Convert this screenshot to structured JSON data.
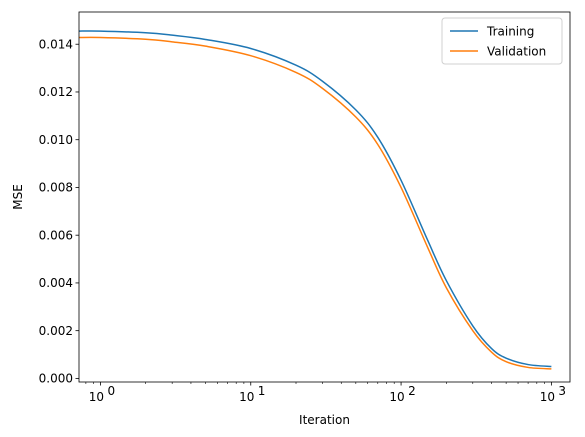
{
  "chart_data": {
    "type": "line",
    "title": "",
    "xlabel": "Iteration",
    "ylabel": "MSE",
    "xscale": "log",
    "xlim": [
      0.72,
      1330
    ],
    "ylim": [
      -0.00015,
      0.01535
    ],
    "x_ticks": [
      {
        "value": 1,
        "label": "10",
        "exp": "0"
      },
      {
        "value": 10,
        "label": "10",
        "exp": "1"
      },
      {
        "value": 100,
        "label": "10",
        "exp": "2"
      },
      {
        "value": 1000,
        "label": "10",
        "exp": "3"
      }
    ],
    "y_ticks": [
      {
        "value": 0.0,
        "label": "0.000"
      },
      {
        "value": 0.002,
        "label": "0.002"
      },
      {
        "value": 0.004,
        "label": "0.004"
      },
      {
        "value": 0.006,
        "label": "0.006"
      },
      {
        "value": 0.008,
        "label": "0.008"
      },
      {
        "value": 0.01,
        "label": "0.010"
      },
      {
        "value": 0.012,
        "label": "0.012"
      },
      {
        "value": 0.014,
        "label": "0.014"
      }
    ],
    "grid": false,
    "legend_position": "top-right",
    "x": [
      0.72,
      1,
      2,
      3,
      5,
      10,
      20,
      30,
      50,
      70,
      100,
      150,
      200,
      300,
      400,
      500,
      700,
      1000
    ],
    "series": [
      {
        "name": "Training",
        "color": "#1f77b4",
        "values": [
          0.01455,
          0.01455,
          0.01448,
          0.01438,
          0.0142,
          0.01382,
          0.01312,
          0.01245,
          0.01125,
          0.0101,
          0.0083,
          0.0058,
          0.0041,
          0.0022,
          0.00125,
          0.00085,
          0.00058,
          0.0005
        ]
      },
      {
        "name": "Validation",
        "color": "#ff7f0e",
        "values": [
          0.01428,
          0.01428,
          0.01421,
          0.0141,
          0.01392,
          0.01352,
          0.01282,
          0.01215,
          0.01095,
          0.0098,
          0.008,
          0.0055,
          0.0038,
          0.002,
          0.0011,
          0.0007,
          0.00046,
          0.0004
        ]
      }
    ]
  }
}
